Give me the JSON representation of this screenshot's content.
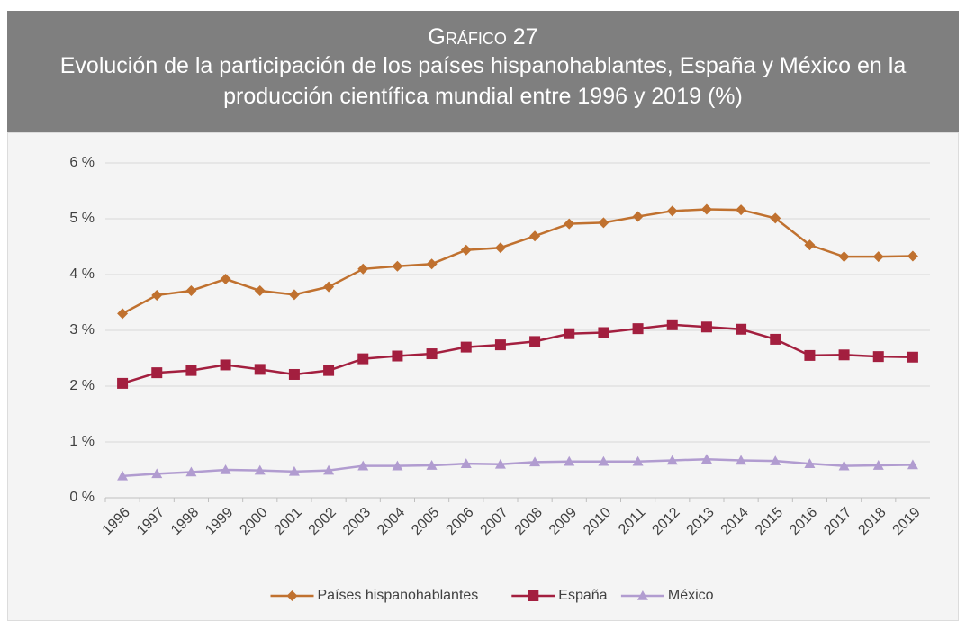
{
  "chart_data": {
    "type": "line",
    "label": "Gráfico 27",
    "title": "Evolución de la participación de los países hispanohablantes, España y México en la producción científica mundial entre 1996 y 2019 (%)",
    "categories": [
      "1996",
      "1997",
      "1998",
      "1999",
      "2000",
      "2001",
      "2002",
      "2003",
      "2004",
      "2005",
      "2006",
      "2007",
      "2008",
      "2009",
      "2010",
      "2011",
      "2012",
      "2013",
      "2014",
      "2015",
      "2016",
      "2017",
      "2018",
      "2019"
    ],
    "series": [
      {
        "name": "Países hispanohablantes",
        "color": "#c0712f",
        "marker": "diamond",
        "values": [
          3.3,
          3.63,
          3.71,
          3.92,
          3.71,
          3.64,
          3.78,
          4.1,
          4.15,
          4.19,
          4.44,
          4.48,
          4.69,
          4.91,
          4.93,
          5.04,
          5.14,
          5.17,
          5.16,
          5.01,
          4.53,
          4.32,
          4.32,
          4.33
        ]
      },
      {
        "name": "España",
        "color": "#a31f3f",
        "marker": "square",
        "values": [
          2.05,
          2.24,
          2.28,
          2.38,
          2.3,
          2.21,
          2.28,
          2.49,
          2.54,
          2.58,
          2.7,
          2.74,
          2.8,
          2.94,
          2.96,
          3.03,
          3.1,
          3.06,
          3.02,
          2.84,
          2.55,
          2.56,
          2.53,
          2.52
        ]
      },
      {
        "name": "México",
        "color": "#b19cd0",
        "marker": "triangle",
        "values": [
          0.39,
          0.43,
          0.46,
          0.5,
          0.49,
          0.47,
          0.49,
          0.57,
          0.57,
          0.58,
          0.61,
          0.6,
          0.64,
          0.65,
          0.65,
          0.65,
          0.67,
          0.69,
          0.67,
          0.66,
          0.61,
          0.57,
          0.58,
          0.59
        ]
      }
    ],
    "ylim": [
      0,
      6
    ],
    "yticks": [
      {
        "value": 0,
        "label": "0 %"
      },
      {
        "value": 1,
        "label": "1 %"
      },
      {
        "value": 2,
        "label": "2 %"
      },
      {
        "value": 3,
        "label": "3 %"
      },
      {
        "value": 4,
        "label": "4 %"
      },
      {
        "value": 5,
        "label": "5 %"
      },
      {
        "value": 6,
        "label": "6 %"
      }
    ],
    "grid": true,
    "legend": "bottom"
  }
}
